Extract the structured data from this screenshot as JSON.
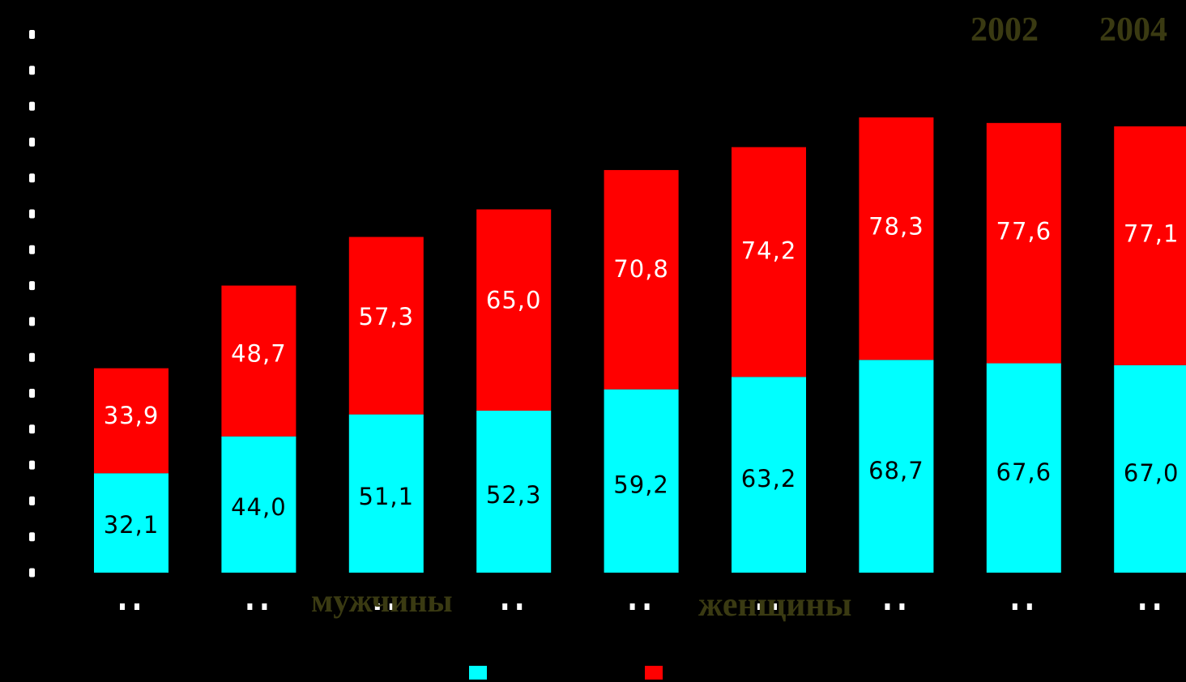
{
  "chart_data": {
    "type": "bar",
    "stacked": true,
    "series": [
      {
        "name": "мужчины",
        "color": "#00FFFF",
        "label_color": "#000000",
        "values": [
          32.1,
          44.0,
          51.1,
          52.3,
          59.2,
          63.2,
          68.7,
          67.6,
          67.0
        ],
        "labels": [
          "32,1",
          "44,0",
          "51,1",
          "52,3",
          "59,2",
          "63,2",
          "68,7",
          "67,6",
          "67,0"
        ]
      },
      {
        "name": "женщины",
        "color": "#FF0000",
        "label_color": "#FFFFFF",
        "values": [
          33.9,
          48.7,
          57.3,
          65.0,
          70.8,
          74.2,
          78.3,
          77.6,
          77.1
        ],
        "labels": [
          "33,9",
          "48,7",
          "57,3",
          "65,0",
          "70,8",
          "74,2",
          "78,3",
          "77,6",
          "77,1"
        ]
      }
    ],
    "visible_year_labels": [
      "2002",
      "2004"
    ],
    "grid": false,
    "legend_position": "bottom"
  }
}
